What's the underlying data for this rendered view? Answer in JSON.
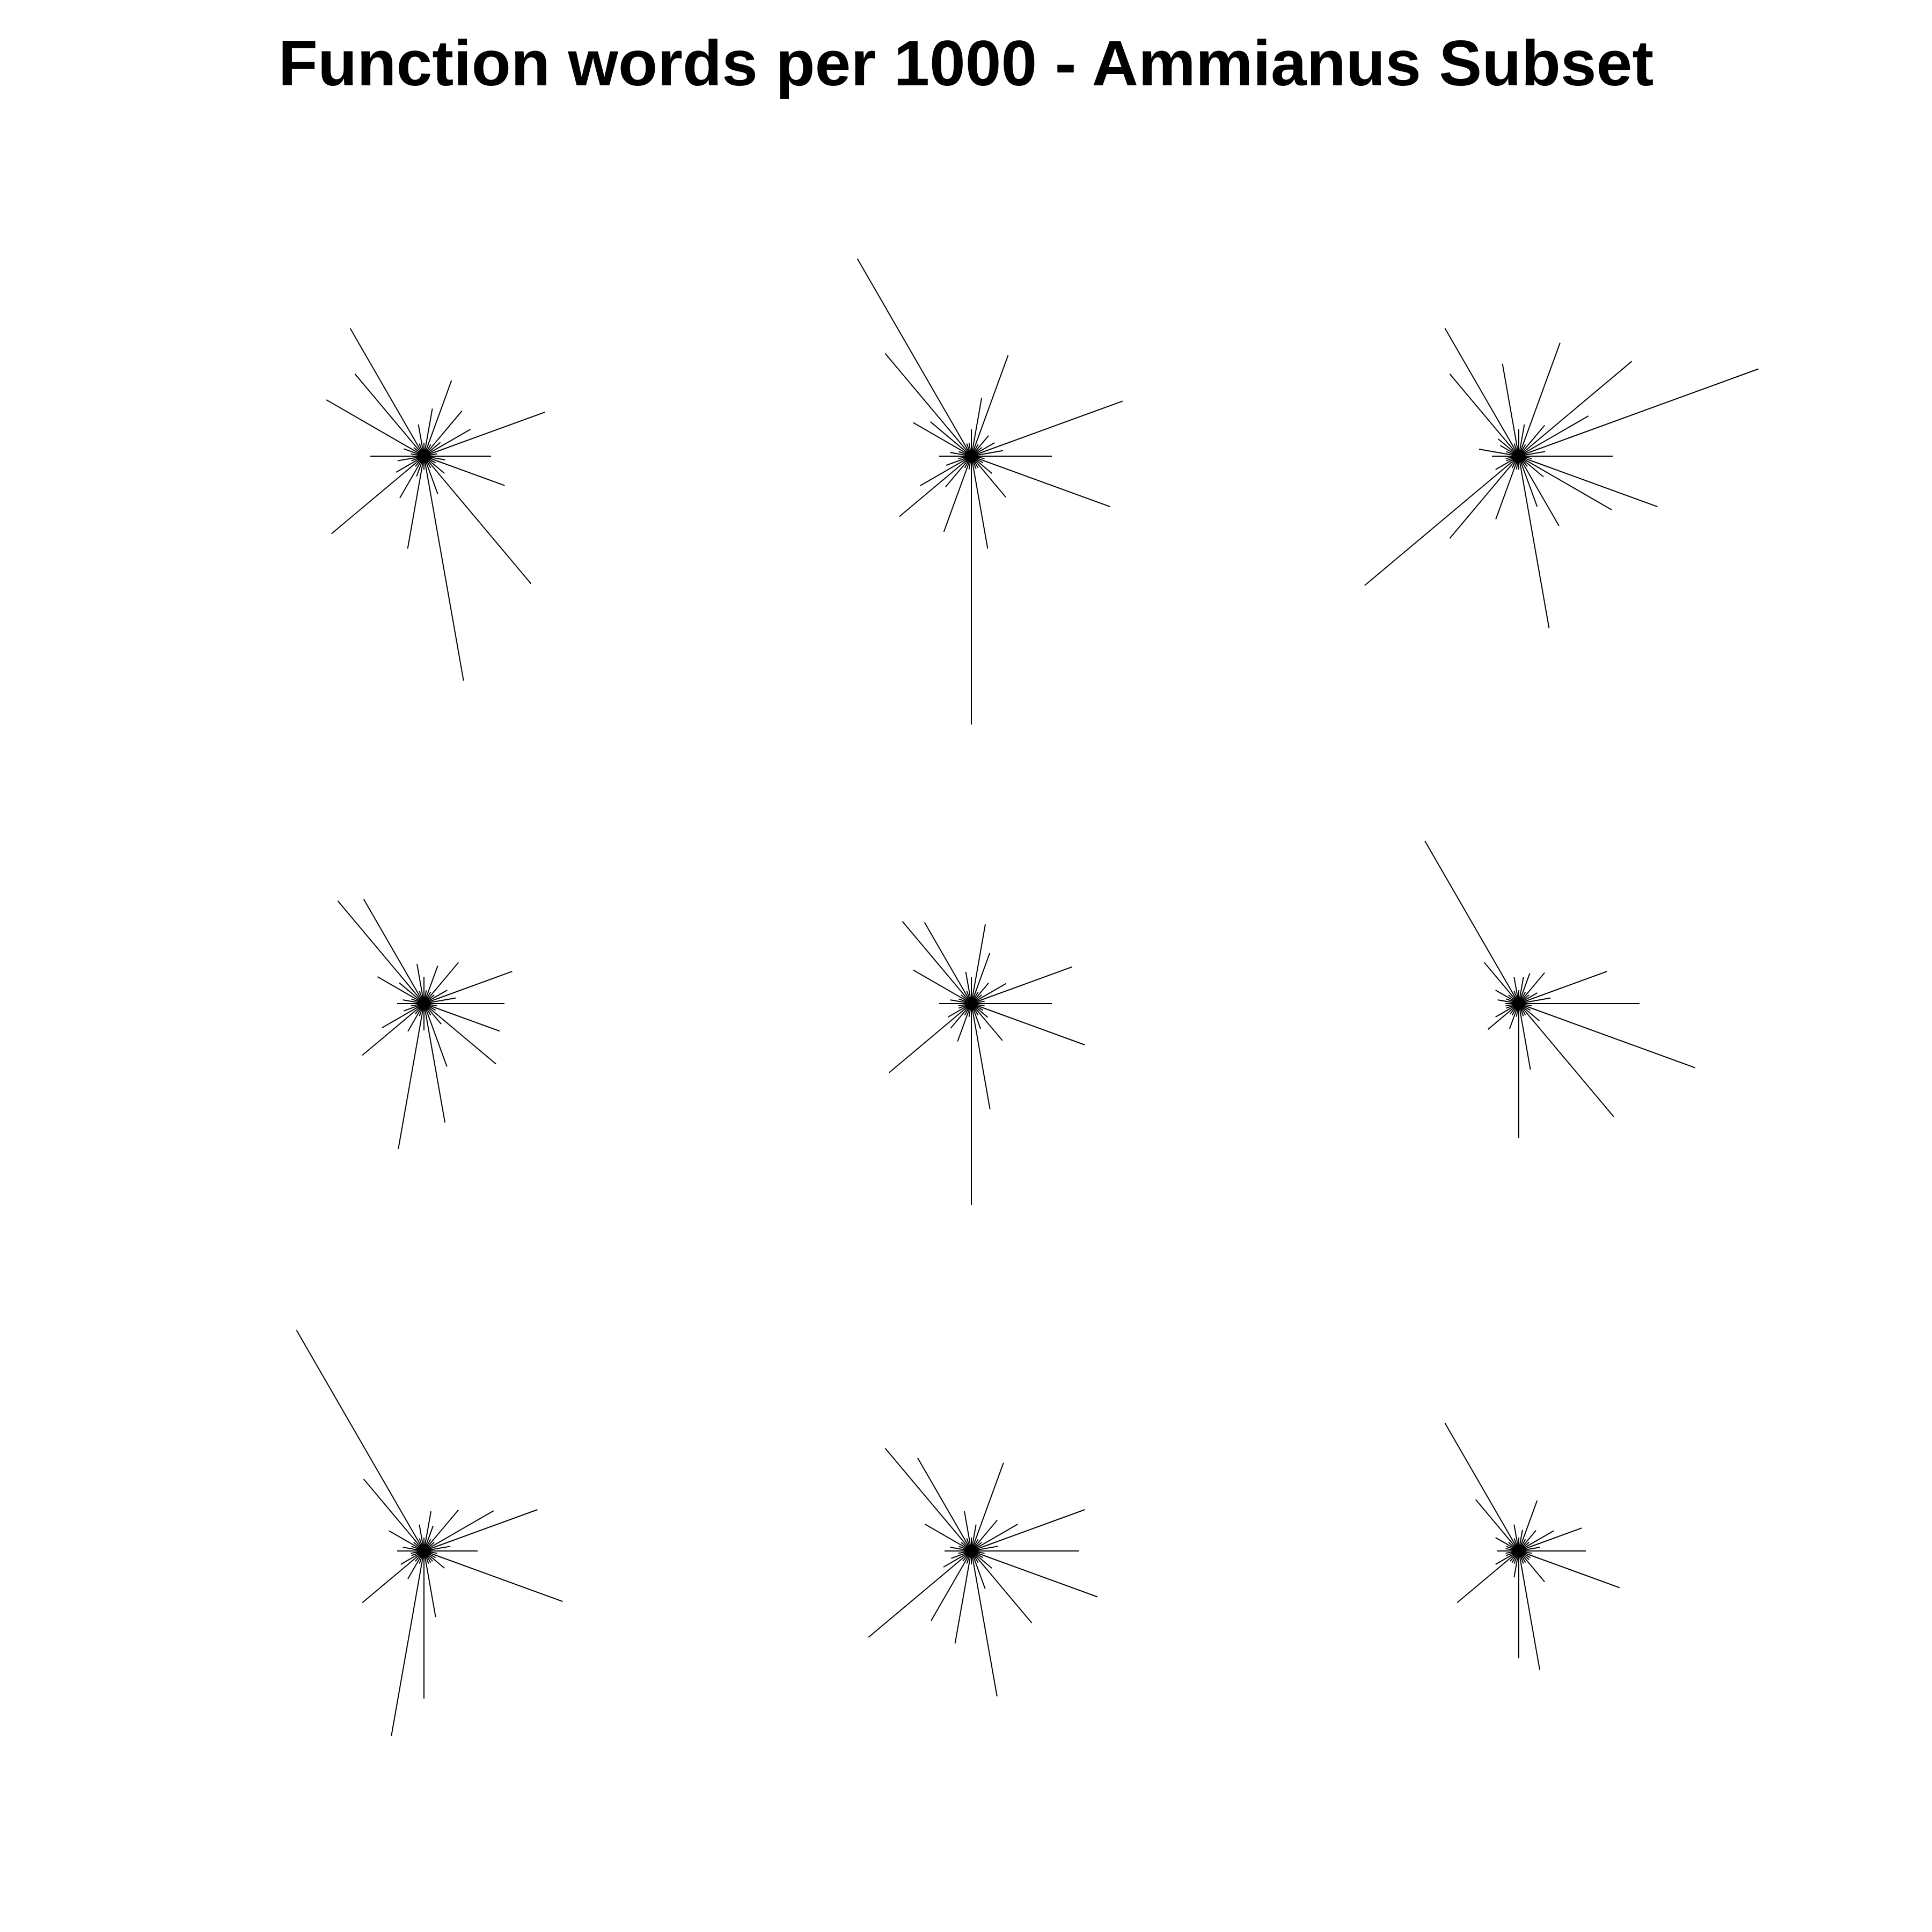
{
  "chart_data": {
    "type": "star",
    "title": "Function words per 1000 - Ammianus Subset",
    "stroke_color": "#000000",
    "background_color": "#ffffff",
    "grid": false,
    "legend": "none",
    "rows": 3,
    "cols": 3,
    "variables_per_star": 36,
    "normalized_values_note": "values are relative radii 0-1 (star segments drawn from a common centre)",
    "stars": [
      {
        "values": [
          0.25,
          0.05,
          0.48,
          0.2,
          0.08,
          0.22,
          0.05,
          0.3,
          0.18,
          0.05,
          0.12,
          0.05,
          0.55,
          0.4,
          0.05,
          0.42,
          0.08,
          0.05,
          0.2,
          0.1,
          0.05,
          0.12,
          0.45,
          0.05,
          0.18,
          0.08,
          0.35,
          0.05,
          0.85,
          0.15,
          0.05,
          0.62,
          0.1,
          0.05,
          0.32,
          0.08
        ]
      },
      {
        "values": [
          0.3,
          0.12,
          0.6,
          0.1,
          0.05,
          0.1,
          0.05,
          0.4,
          0.22,
          0.1,
          0.05,
          0.05,
          0.85,
          0.5,
          0.2,
          0.25,
          0.05,
          0.08,
          0.12,
          0.05,
          0.1,
          0.22,
          0.35,
          0.15,
          0.05,
          0.3,
          0.05,
          1.0,
          0.35,
          0.05,
          0.05,
          0.2,
          0.1,
          0.05,
          0.55,
          0.05
        ]
      },
      {
        "values": [
          0.35,
          0.1,
          0.95,
          0.3,
          0.55,
          0.15,
          0.05,
          0.45,
          0.12,
          0.1,
          0.35,
          0.05,
          0.55,
          0.4,
          0.1,
          0.08,
          0.05,
          0.15,
          0.1,
          0.05,
          0.05,
          0.1,
          0.75,
          0.4,
          0.05,
          0.25,
          0.05,
          0.05,
          0.65,
          0.2,
          0.3,
          0.05,
          0.12,
          0.4,
          0.55,
          0.05
        ]
      },
      {
        "values": [
          0.3,
          0.12,
          0.35,
          0.1,
          0.05,
          0.2,
          0.05,
          0.15,
          0.05,
          0.1,
          0.15,
          0.05,
          0.45,
          0.5,
          0.12,
          0.2,
          0.05,
          0.08,
          0.1,
          0.05,
          0.08,
          0.18,
          0.3,
          0.05,
          0.12,
          0.05,
          0.55,
          0.1,
          0.45,
          0.25,
          0.05,
          0.1,
          0.35,
          0.05,
          0.3,
          0.05
        ]
      },
      {
        "values": [
          0.3,
          0.05,
          0.4,
          0.15,
          0.05,
          0.1,
          0.05,
          0.2,
          0.3,
          0.1,
          0.12,
          0.05,
          0.35,
          0.4,
          0.05,
          0.25,
          0.05,
          0.08,
          0.12,
          0.05,
          0.05,
          0.1,
          0.4,
          0.12,
          0.05,
          0.15,
          0.05,
          0.75,
          0.4,
          0.1,
          0.05,
          0.18,
          0.08,
          0.05,
          0.45,
          0.05
        ]
      },
      {
        "values": [
          0.45,
          0.12,
          0.35,
          0.08,
          0.05,
          0.15,
          0.05,
          0.12,
          0.1,
          0.05,
          0.1,
          0.05,
          0.7,
          0.2,
          0.05,
          0.1,
          0.05,
          0.08,
          0.05,
          0.05,
          0.05,
          0.1,
          0.15,
          0.05,
          0.05,
          0.1,
          0.05,
          0.5,
          0.25,
          0.05,
          0.05,
          0.55,
          0.1,
          0.05,
          0.7,
          0.05
        ]
      },
      {
        "values": [
          0.2,
          0.1,
          0.45,
          0.3,
          0.05,
          0.2,
          0.05,
          0.1,
          0.15,
          0.05,
          0.1,
          0.05,
          0.95,
          0.35,
          0.05,
          0.15,
          0.05,
          0.08,
          0.1,
          0.05,
          0.05,
          0.1,
          0.3,
          0.05,
          0.12,
          0.05,
          0.7,
          0.55,
          0.25,
          0.05,
          0.05,
          0.05,
          0.1,
          0.05,
          0.55,
          0.05
        ]
      },
      {
        "values": [
          0.4,
          0.1,
          0.45,
          0.2,
          0.05,
          0.15,
          0.05,
          0.35,
          0.1,
          0.05,
          0.15,
          0.05,
          0.4,
          0.5,
          0.05,
          0.2,
          0.05,
          0.08,
          0.1,
          0.05,
          0.08,
          0.12,
          0.5,
          0.05,
          0.3,
          0.05,
          0.35,
          0.05,
          0.55,
          0.15,
          0.05,
          0.35,
          0.1,
          0.05,
          0.5,
          0.05
        ]
      },
      {
        "values": [
          0.25,
          0.08,
          0.25,
          0.15,
          0.05,
          0.1,
          0.05,
          0.2,
          0.08,
          0.05,
          0.1,
          0.05,
          0.55,
          0.25,
          0.05,
          0.1,
          0.05,
          0.05,
          0.08,
          0.05,
          0.05,
          0.1,
          0.3,
          0.05,
          0.05,
          0.05,
          0.1,
          0.4,
          0.45,
          0.05,
          0.05,
          0.15,
          0.05,
          0.05,
          0.4,
          0.05
        ]
      }
    ]
  }
}
